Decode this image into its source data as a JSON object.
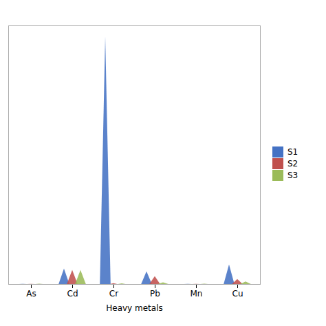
{
  "chart_data": {
    "type": "bar",
    "categories": [
      "As",
      "Cd",
      "Cr",
      "Pb",
      "Mn",
      "Cu"
    ],
    "series": [
      {
        "name": "S1",
        "color": "#4472C4",
        "values": [
          0.08,
          5.5,
          88.0,
          4.5,
          0.08,
          7.0
        ]
      },
      {
        "name": "S2",
        "color": "#C0504D",
        "values": [
          0.05,
          5.0,
          0.3,
          2.8,
          0.07,
          1.8
        ]
      },
      {
        "name": "S3",
        "color": "#9BBB59",
        "values": [
          0.13,
          5.0,
          0.25,
          0.6,
          0.12,
          0.9
        ]
      }
    ],
    "xlabel": "Heavy metals",
    "ylim": [
      0,
      92
    ],
    "tick_labels": "x",
    "legend": "right"
  }
}
